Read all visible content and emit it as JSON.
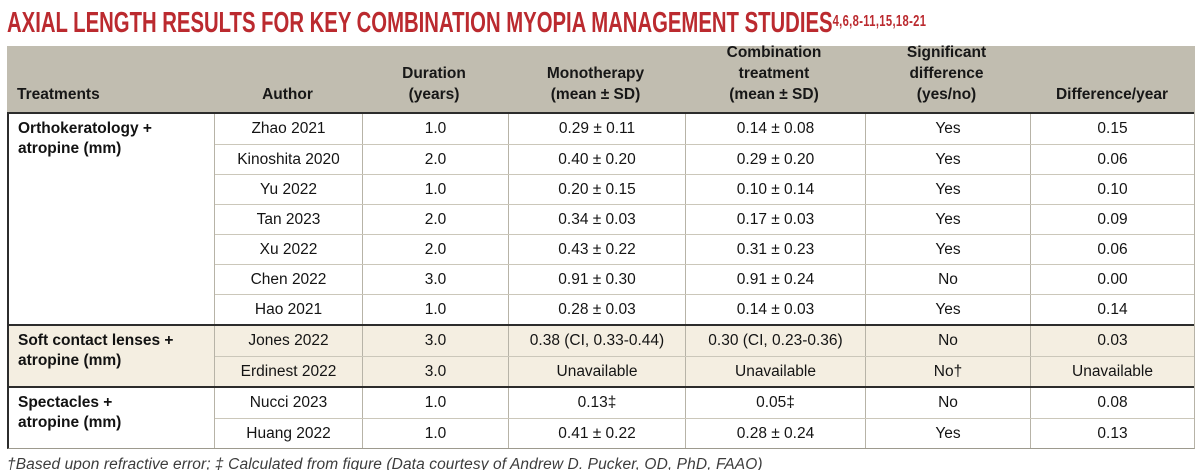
{
  "title": {
    "text": "AXIAL LENGTH RESULTS FOR KEY COMBINATION MYOPIA MANAGEMENT STUDIES",
    "superscript": "4,6,8-11,15,18-21"
  },
  "colors": {
    "title_red": "#bb2a2f",
    "header_background": "#c1bdb0",
    "shaded_row_background": "#f4eee1",
    "dark_border": "#2c2c2c",
    "light_border": "#b7b3a7"
  },
  "table": {
    "headers": [
      {
        "id": "treatments",
        "lines": [
          "Treatments"
        ]
      },
      {
        "id": "author",
        "lines": [
          "Author"
        ]
      },
      {
        "id": "duration",
        "lines": [
          "Duration",
          "(years)"
        ]
      },
      {
        "id": "monotherapy",
        "lines": [
          "Monotherapy",
          "(mean ± SD)"
        ]
      },
      {
        "id": "combination-treatment",
        "lines": [
          "Combination",
          "treatment",
          "(mean ± SD)"
        ]
      },
      {
        "id": "significant-difference",
        "lines": [
          "Significant",
          "difference",
          "(yes/no)"
        ]
      },
      {
        "id": "difference-per-year",
        "lines": [
          "Difference/year"
        ]
      }
    ],
    "groups": [
      {
        "treatment_lines": [
          "Orthokeratology +",
          "atropine (mm)"
        ],
        "shaded": false,
        "rows": [
          [
            "Zhao 2021",
            "1.0",
            "0.29 ± 0.11",
            "0.14 ± 0.08",
            "Yes",
            "0.15"
          ],
          [
            "Kinoshita 2020",
            "2.0",
            "0.40 ± 0.20",
            "0.29 ± 0.20",
            "Yes",
            "0.06"
          ],
          [
            "Yu 2022",
            "1.0",
            "0.20 ± 0.15",
            "0.10 ± 0.14",
            "Yes",
            "0.10"
          ],
          [
            "Tan 2023",
            "2.0",
            "0.34 ± 0.03",
            "0.17 ± 0.03",
            "Yes",
            "0.09"
          ],
          [
            "Xu 2022",
            "2.0",
            "0.43 ± 0.22",
            "0.31 ± 0.23",
            "Yes",
            "0.06"
          ],
          [
            "Chen 2022",
            "3.0",
            "0.91 ± 0.30",
            "0.91 ± 0.24",
            "No",
            "0.00"
          ],
          [
            "Hao 2021",
            "1.0",
            "0.28 ± 0.03",
            "0.14 ± 0.03",
            "Yes",
            "0.14"
          ]
        ]
      },
      {
        "treatment_lines": [
          "Soft contact lenses +",
          "atropine (mm)"
        ],
        "shaded": true,
        "rows": [
          [
            "Jones 2022",
            "3.0",
            "0.38 (CI, 0.33-0.44)",
            "0.30 (CI, 0.23-0.36)",
            "No",
            "0.03"
          ],
          [
            "Erdinest 2022",
            "3.0",
            "Unavailable",
            "Unavailable",
            "No†",
            "Unavailable"
          ]
        ]
      },
      {
        "treatment_lines": [
          "Spectacles +",
          "atropine (mm)"
        ],
        "shaded": false,
        "rows": [
          [
            "Nucci 2023",
            "1.0",
            "0.13‡",
            "0.05‡",
            "No",
            "0.08"
          ],
          [
            "Huang 2022",
            "1.0",
            "0.41 ± 0.22",
            "0.28 ± 0.24",
            "Yes",
            "0.13"
          ]
        ]
      }
    ]
  },
  "footnote": "†Based upon refractive error; ‡ Calculated from figure (Data courtesy of Andrew D. Pucker, OD, PhD, FAAO)"
}
